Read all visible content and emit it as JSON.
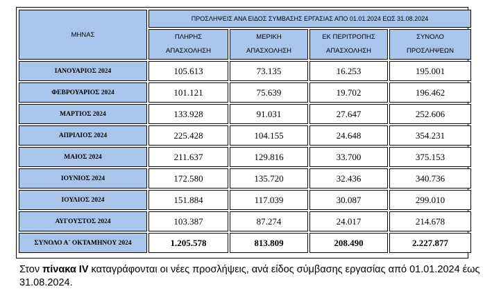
{
  "table": {
    "title": "ΠΡΟΣΛΗΨΕΙΣ ΑΝΑ ΕΙΔΟΣ  ΣΥΜΒΑΣΗΣ ΕΡΓΑΣΙΑΣ ΑΠΟ  01.01.2024  ΕΩΣ  31.08.2024",
    "month_header": "ΜΗΝΑΣ",
    "columns": [
      {
        "line1": "ΠΛΗΡΗΣ",
        "line2": "ΑΠΑΣΧΟΛΗΣΗ"
      },
      {
        "line1": "ΜΕΡΙΚΗ",
        "line2": "ΑΠΑΣΧΟΛΗΣΗ"
      },
      {
        "line1": "ΕΚ ΠΕΡΙΤΡΟΠΗΣ",
        "line2": "ΑΠΑΣΧΟΛΗΣΗ"
      },
      {
        "line1": "ΣΥΝΟΛΟ",
        "line2": "ΠΡΟΣΛΗΨΕΩΝ"
      }
    ],
    "rows": [
      {
        "month": "ΙΑΝΟΥΑΡΙΟΣ 2024",
        "values": [
          "105.613",
          "73.135",
          "16.253",
          "195.001"
        ]
      },
      {
        "month": "ΦΕΒΡΟΥΑΡΙΟΣ 2024",
        "values": [
          "101.121",
          "75.639",
          "19.702",
          "196.462"
        ]
      },
      {
        "month": "ΜΑΡΤΙΟΣ 2024",
        "values": [
          "133.928",
          "91.031",
          "27.647",
          "252.606"
        ]
      },
      {
        "month": "ΑΠΡΙΛΙΟΣ 2024",
        "values": [
          "225.428",
          "104.155",
          "24.648",
          "354.231"
        ]
      },
      {
        "month": "ΜΑΙΟΣ 2024",
        "values": [
          "211.637",
          "129.816",
          "33.700",
          "375.153"
        ]
      },
      {
        "month": "ΙΟΥΝΙΟΣ 2024",
        "values": [
          "172.580",
          "135.720",
          "32.436",
          "340.736"
        ]
      },
      {
        "month": "ΙΟΥΛΙΟΣ 2024",
        "values": [
          "151.884",
          "117.039",
          "30.087",
          "299.010"
        ]
      },
      {
        "month": "ΑΥΓΟΥΣΤΟΣ 2024",
        "values": [
          "103.387",
          "87.274",
          "24.017",
          "214.678"
        ]
      }
    ],
    "total": {
      "label": "ΣΥΝΟΛΟ Α΄ ΟΚΤΑΜΗΝΟΥ 2024",
      "values": [
        "1.205.578",
        "813.809",
        "208.490",
        "2.227.877"
      ]
    }
  },
  "caption": {
    "part1": "Στον ",
    "bold": "πίνακα IV",
    "part2": " καταγράφονται οι νέες προσλήψεις, ανά είδος σύμβασης εργασίας από 01.01.2024 έως 31.08.2024."
  },
  "colors": {
    "header_bg": "#a9c6ea",
    "border": "#000000"
  }
}
